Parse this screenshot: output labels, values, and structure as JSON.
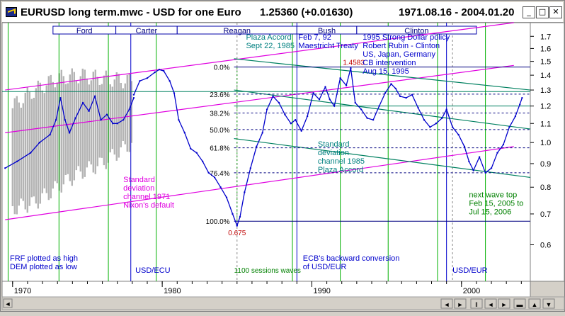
{
  "window": {
    "title": "EURUSD long term.mwc - USD for one Euro",
    "price": "1.25360 (+0.01630)",
    "date_range": "1971.08.16 - 2004.01.20",
    "controls": {
      "minimize": "_",
      "maximize": "□",
      "close": "✕"
    }
  },
  "colors": {
    "blue": "#0000cc",
    "green": "#008060",
    "magenta": "#e000e0",
    "gray": "#b4b4b4",
    "navy": "#000080"
  },
  "chart_data": {
    "type": "line",
    "title": "EURUSD long term - USD for one Euro",
    "xlim": [
      1969.3,
      2004.6
    ],
    "ylim": [
      0.5,
      1.82
    ],
    "ylog": true,
    "y_ticks": [
      1.7,
      1.6,
      1.5,
      1.4,
      1.3,
      1.2,
      1.1,
      1.0,
      0.9,
      0.8,
      0.7,
      0.6
    ],
    "x_ticks": [
      1970,
      1980,
      1990,
      2000
    ],
    "presidents": [
      {
        "name": "Ford",
        "start": 1972.7,
        "end": 1976.9
      },
      {
        "name": "Carter",
        "start": 1976.9,
        "end": 1981.0
      },
      {
        "name": "Reagan",
        "start": 1981.0,
        "end": 1989.0
      },
      {
        "name": "Bush",
        "start": 1989.0,
        "end": 1993.0
      },
      {
        "name": "Clinton",
        "start": 1993.0,
        "end": 2001.0
      }
    ],
    "green_verticals": [
      1969.7,
      1973.1,
      1976.4,
      1979.6,
      1988.7,
      1991.9,
      1995.1,
      1998.4,
      2001.6
    ],
    "blue_verticals": [
      1977.9,
      1989.0,
      1999.0
    ],
    "series": [
      {
        "name": "FRF/DEM synthetic",
        "x": [
          1969.5,
          1970.3,
          1971.2,
          1971.8,
          1972.5,
          1972.9,
          1973.2,
          1973.5,
          1973.8,
          1974.2,
          1974.7,
          1975.1,
          1975.5,
          1975.9,
          1976.3,
          1976.7,
          1977.0,
          1977.4,
          1977.8,
          1978.1
        ],
        "y": [
          0.88,
          0.91,
          0.95,
          1.0,
          1.04,
          1.12,
          1.25,
          1.12,
          1.05,
          1.13,
          1.22,
          1.17,
          1.26,
          1.12,
          1.15,
          1.1,
          1.1,
          1.12,
          1.18,
          1.25
        ]
      },
      {
        "name": "USD/ECU-EUR",
        "x": [
          1978.1,
          1978.5,
          1979.0,
          1979.5,
          1979.8,
          1980.1,
          1980.5,
          1980.8,
          1981.1,
          1981.5,
          1981.9,
          1982.3,
          1982.7,
          1983.1,
          1983.5,
          1983.9,
          1984.3,
          1984.7,
          1985.0,
          1985.2,
          1985.5,
          1985.9,
          1986.3,
          1986.7,
          1987.0,
          1987.4,
          1987.8,
          1988.2,
          1988.6,
          1988.9,
          1989.3,
          1989.7,
          1990.1,
          1990.5,
          1990.9,
          1991.2,
          1991.5,
          1991.9,
          1992.3,
          1992.6,
          1992.9,
          1993.3,
          1993.7,
          1994.1,
          1994.5,
          1994.9,
          1995.3,
          1995.6,
          1995.9,
          1996.3,
          1996.7,
          1997.1,
          1997.5,
          1997.9,
          1998.3,
          1998.7,
          1999.0,
          1999.4,
          1999.8,
          2000.2,
          2000.5,
          2000.8,
          2001.2,
          2001.6,
          2002.0,
          2002.4,
          2002.8,
          2003.2,
          2003.6,
          2003.9,
          2004.05
        ],
        "y": [
          1.27,
          1.36,
          1.38,
          1.42,
          1.44,
          1.43,
          1.36,
          1.28,
          1.12,
          1.05,
          0.97,
          0.95,
          0.91,
          0.86,
          0.84,
          0.8,
          0.76,
          0.7,
          0.66,
          0.69,
          0.78,
          0.88,
          0.98,
          1.05,
          1.18,
          1.26,
          1.22,
          1.15,
          1.1,
          1.12,
          1.06,
          1.14,
          1.28,
          1.24,
          1.32,
          1.24,
          1.2,
          1.38,
          1.33,
          1.45,
          1.22,
          1.18,
          1.13,
          1.12,
          1.2,
          1.28,
          1.34,
          1.31,
          1.26,
          1.25,
          1.27,
          1.19,
          1.12,
          1.08,
          1.1,
          1.13,
          1.18,
          1.08,
          1.04,
          0.98,
          0.91,
          0.87,
          0.93,
          0.86,
          0.88,
          0.95,
          0.99,
          1.08,
          1.14,
          1.21,
          1.25
        ]
      }
    ],
    "ranges_gray": [
      {
        "x": 1970.0,
        "low": 0.72,
        "high": 1.2
      },
      {
        "x": 1971.5,
        "low": 0.74,
        "high": 1.3
      },
      {
        "x": 1973.0,
        "low": 0.8,
        "high": 1.38
      },
      {
        "x": 1974.5,
        "low": 0.86,
        "high": 1.4
      },
      {
        "x": 1976.0,
        "low": 0.9,
        "high": 1.38
      },
      {
        "x": 1978.0,
        "low": 1.0,
        "high": 1.36
      }
    ],
    "fibonacci": {
      "high": 1.4583,
      "low": 0.675,
      "levels": [
        {
          "label": "0.0%",
          "value": 1.4583
        },
        {
          "label": "23.6%",
          "value": 1.2735
        },
        {
          "label": "38.2%",
          "value": 1.1591
        },
        {
          "label": "50.0%",
          "value": 1.0667
        },
        {
          "label": "61.8%",
          "value": 0.9742
        },
        {
          "label": "76.4%",
          "value": 0.8598
        },
        {
          "label": "100.0%",
          "value": 0.675
        }
      ],
      "start_x": 1984.8,
      "end_x": 2004.6,
      "high_label": "1.4583",
      "low_label": "0.675"
    },
    "channels": [
      {
        "name": "1971",
        "color": "magenta",
        "x": [
          1969.5,
          2003.5
        ],
        "center": [
          1.05,
          1.47
        ],
        "upper": [
          1.3,
          1.82
        ],
        "lower": [
          0.68,
          0.98
        ]
      },
      {
        "name": "1985",
        "color": "green",
        "x": [
          1984.8,
          2004.6
        ],
        "center": [
          1.3,
          1.07
        ],
        "upper": [
          1.52,
          1.3
        ],
        "lower": [
          1.02,
          0.84
        ]
      }
    ],
    "h_lines": [
      {
        "value": 1.29,
        "color": "green",
        "x_from": 1969.3
      },
      {
        "value": 1.2,
        "color": "green",
        "x_from": 1984.8
      }
    ],
    "annotations": {
      "plaza": "Plaza Accord\nSept 22, 1985",
      "maastricht": "Feb 7, 92\nMaestricht Treaty",
      "rubin": "1995 Strong Dollar policy\nRobert Rubin - Clinton\nUS, Japan, Germany\nCB intervention\nAug 15, 1995",
      "channel_1985": "Standard\ndeviation\nchannel 1985\nPlaza Accord",
      "channel_1971": "Standard\ndeviation\nchannel 1971\nNixon's default",
      "next_wave": "next wave top\nFeb 15, 2005 to\nJul 15, 2006",
      "frf": "FRF plotted as high\nDEM plotted as low",
      "usd_ecu": "USD/ECU",
      "sessions": "1100 sessions waves",
      "ecb": "ECB's backward conversion\nof USD/EUR",
      "usd_eur": "USD/EUR"
    }
  }
}
